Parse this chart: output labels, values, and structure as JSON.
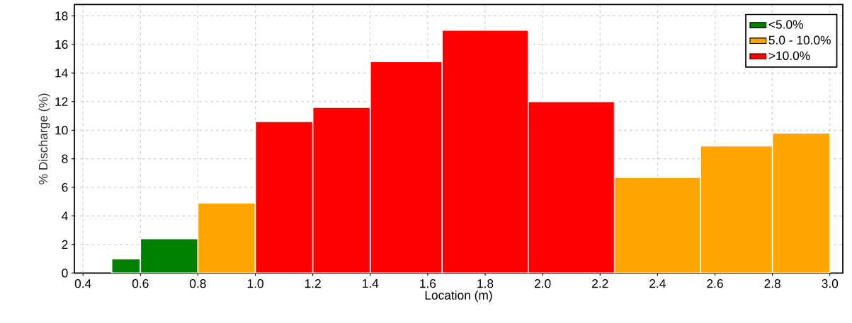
{
  "chart_data": {
    "type": "histogram",
    "xlabel": "Location (m)",
    "ylabel": "% Discharge (%)",
    "bins": [
      0.5,
      0.6,
      0.8,
      1.0,
      1.2,
      1.4,
      1.65,
      1.95,
      2.25,
      2.55,
      2.8,
      3.0
    ],
    "series": [
      {
        "name": "<5.0%",
        "color": "#008000",
        "values": [
          1.0,
          2.4,
          null,
          null,
          null,
          null,
          null,
          null,
          null,
          null,
          null
        ]
      },
      {
        "name": "5.0 - 10.0%",
        "color": "#ffa500",
        "values": [
          null,
          null,
          4.9,
          null,
          null,
          null,
          null,
          null,
          6.7,
          8.9,
          9.8
        ]
      },
      {
        "name": ">10.0%",
        "color": "#ff0000",
        "values": [
          null,
          null,
          null,
          10.6,
          11.6,
          14.8,
          17.0,
          12.0,
          null,
          null,
          null
        ]
      }
    ],
    "xlim": [
      0.37,
      3.045
    ],
    "ylim": [
      0,
      18.8
    ],
    "xticks": [
      {
        "value": 0.4,
        "label": "0.4"
      },
      {
        "value": 0.6,
        "label": "0.6"
      },
      {
        "value": 0.8,
        "label": "0.8"
      },
      {
        "value": 1.0,
        "label": "1.0"
      },
      {
        "value": 1.2,
        "label": "1.2"
      },
      {
        "value": 1.4,
        "label": "1.4"
      },
      {
        "value": 1.6,
        "label": "1.6"
      },
      {
        "value": 1.8,
        "label": "1.8"
      },
      {
        "value": 2.0,
        "label": "2.0"
      },
      {
        "value": 2.2,
        "label": "2.2"
      },
      {
        "value": 2.4,
        "label": "2.4"
      },
      {
        "value": 2.6,
        "label": "2.6"
      },
      {
        "value": 2.8,
        "label": "2.8"
      },
      {
        "value": 3.0,
        "label": "3.0"
      }
    ],
    "yticks": [
      0,
      2,
      4,
      6,
      8,
      10,
      12,
      14,
      16,
      18
    ],
    "grid": true,
    "legend": "top right"
  }
}
